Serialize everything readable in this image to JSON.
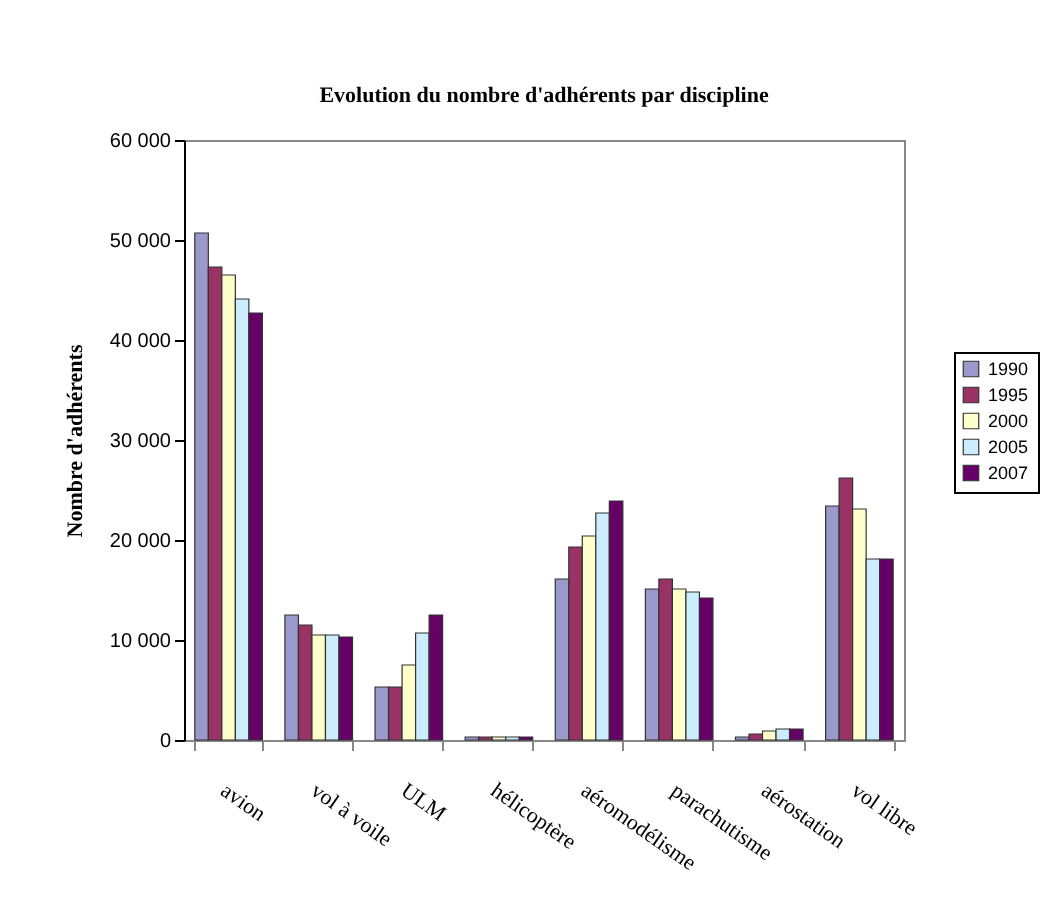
{
  "chart_data": {
    "type": "bar",
    "title": "Evolution du nombre d'adhérents par discipline",
    "ylabel": "Nombre d'adhérents",
    "categories": [
      "avion",
      "vol à voile",
      "ULM",
      "hélicoptère",
      "aéromodélisme",
      "parachutisme",
      "aérostation",
      "vol libre"
    ],
    "series": [
      {
        "name": "1990",
        "color": "#9999cc",
        "values": [
          50700,
          12500,
          5300,
          300,
          16100,
          15100,
          300,
          23400
        ]
      },
      {
        "name": "1995",
        "color": "#993366",
        "values": [
          47300,
          11500,
          5300,
          300,
          19300,
          16100,
          600,
          26200
        ]
      },
      {
        "name": "2000",
        "color": "#ffffcc",
        "values": [
          46500,
          10500,
          7500,
          300,
          20400,
          15100,
          900,
          23100
        ]
      },
      {
        "name": "2005",
        "color": "#ccecff",
        "values": [
          44100,
          10500,
          10700,
          300,
          22700,
          14800,
          1100,
          18100
        ]
      },
      {
        "name": "2007",
        "color": "#660066",
        "values": [
          42700,
          10300,
          12500,
          300,
          23900,
          14200,
          1100,
          18100
        ]
      }
    ],
    "ylim": [
      0,
      60000
    ],
    "yticks": [
      0,
      {
        "value": 10000,
        "label": "10 000"
      },
      {
        "value": 20000,
        "label": "20 000"
      },
      {
        "value": 30000,
        "label": "30 000"
      },
      {
        "value": 40000,
        "label": "40 000"
      },
      {
        "value": 50000,
        "label": "50 000"
      },
      {
        "value": 60000,
        "label": "60 000"
      }
    ],
    "grid": false,
    "legend": "right"
  }
}
